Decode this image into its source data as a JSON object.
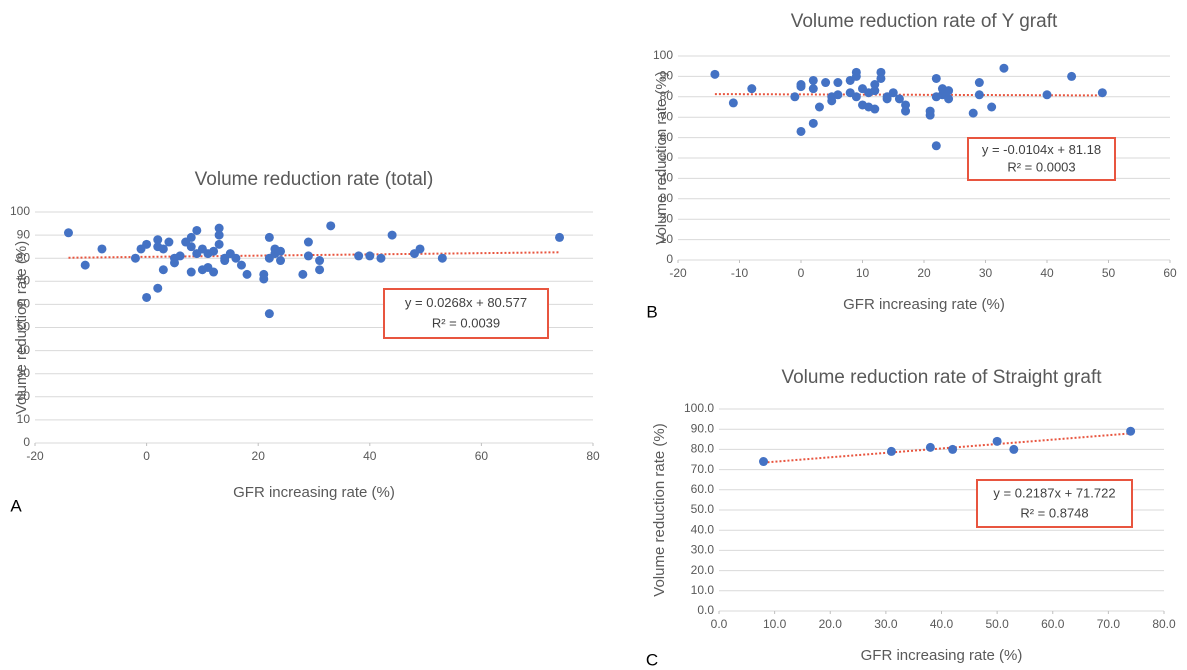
{
  "chart_data": [
    {
      "type": "scatter",
      "panel_label": "A",
      "title": "Volume reduction rate (total)",
      "x_label": "GFR increasing rate (%)",
      "y_label": "Volume reduction rate (%)",
      "color": "#4472c4",
      "grid": true,
      "x": [
        -14,
        -11,
        -8,
        -2,
        -1,
        0,
        0,
        2,
        2,
        2,
        3,
        3,
        4,
        5,
        5,
        6,
        7,
        8,
        8,
        8,
        9,
        9,
        10,
        10,
        11,
        11,
        12,
        12,
        13,
        13,
        13,
        14,
        14,
        15,
        16,
        17,
        18,
        21,
        21,
        22,
        22,
        22,
        23,
        23,
        24,
        24,
        28,
        29,
        29,
        31,
        31,
        33,
        38,
        40,
        42,
        44,
        48,
        49,
        53,
        74
      ],
      "values": [
        91,
        77,
        84,
        80,
        84,
        86,
        63,
        67,
        88,
        85,
        84,
        75,
        87,
        78,
        80,
        81,
        87,
        74,
        85,
        89,
        82,
        92,
        84,
        75,
        76,
        82,
        74,
        83,
        86,
        90,
        93,
        80,
        79,
        82,
        80,
        77,
        73,
        71,
        73,
        89,
        80,
        56,
        84,
        82,
        79,
        83,
        73,
        87,
        81,
        75,
        79,
        94,
        81,
        81,
        80,
        90,
        82,
        84,
        80,
        89
      ],
      "xlim": [
        -20,
        80
      ],
      "xticks": [
        -20,
        0,
        20,
        40,
        60,
        80
      ],
      "ylim": [
        0,
        100
      ],
      "yticks": [
        0,
        10,
        20,
        30,
        40,
        50,
        60,
        70,
        80,
        90,
        100
      ],
      "trendline": {
        "color": "#e8553f",
        "slope": 0.0268,
        "intercept": 80.577,
        "equation": "y = 0.0268x + 80.577",
        "r2_label": "R² = 0.0039",
        "r2": 0.0039
      }
    },
    {
      "type": "scatter",
      "panel_label": "B",
      "title": "Volume reduction rate of Y graft",
      "x_label": "GFR increasing rate (%)",
      "y_label": "Volume reduction rate (%)",
      "color": "#4472c4",
      "grid": true,
      "x": [
        -14,
        -11,
        -8,
        -1,
        0,
        0,
        0,
        2,
        2,
        2,
        3,
        4,
        5,
        5,
        6,
        6,
        8,
        8,
        9,
        9,
        9,
        10,
        10,
        11,
        11,
        12,
        12,
        12,
        13,
        13,
        14,
        14,
        15,
        16,
        17,
        17,
        21,
        21,
        22,
        22,
        22,
        23,
        23,
        24,
        24,
        28,
        29,
        29,
        31,
        33,
        40,
        44,
        49
      ],
      "values": [
        91,
        77,
        84,
        80,
        85,
        86,
        63,
        67,
        88,
        84,
        75,
        87,
        78,
        80,
        81,
        87,
        82,
        88,
        90,
        92,
        80,
        84,
        76,
        75,
        82,
        74,
        83,
        86,
        89,
        92,
        80,
        79,
        82,
        79,
        73,
        76,
        71,
        73,
        89,
        80,
        56,
        81,
        84,
        79,
        83,
        72,
        87,
        81,
        75,
        94,
        81,
        90,
        82
      ],
      "xlim": [
        -20,
        60
      ],
      "xticks": [
        -20,
        -10,
        0,
        10,
        20,
        30,
        40,
        50,
        60
      ],
      "ylim": [
        0,
        100
      ],
      "yticks": [
        0,
        10,
        20,
        30,
        40,
        50,
        60,
        70,
        80,
        90,
        100
      ],
      "trendline": {
        "color": "#e8553f",
        "slope": -0.0104,
        "intercept": 81.18,
        "equation": "y = -0.0104x + 81.18",
        "r2_label": "R² = 0.0003",
        "r2": 0.0003
      }
    },
    {
      "type": "scatter",
      "panel_label": "C",
      "title": "Volume reduction rate of Straight graft",
      "x_label": "GFR increasing rate (%)",
      "y_label": "Volume reduction rate (%)",
      "color": "#4472c4",
      "grid": true,
      "x": [
        8,
        31,
        38,
        42,
        50,
        53,
        74
      ],
      "values": [
        74,
        79,
        81,
        80,
        84,
        80,
        89
      ],
      "xlim": [
        0,
        80
      ],
      "xticks": [
        {
          "value": 0,
          "label": "0.0"
        },
        {
          "value": 10,
          "label": "10.0"
        },
        {
          "value": 20,
          "label": "20.0"
        },
        {
          "value": 30,
          "label": "30.0"
        },
        {
          "value": 40,
          "label": "40.0"
        },
        {
          "value": 50,
          "label": "50.0"
        },
        {
          "value": 60,
          "label": "60.0"
        },
        {
          "value": 70,
          "label": "70.0"
        },
        {
          "value": 80,
          "label": "80.0"
        }
      ],
      "ylim": [
        0,
        100
      ],
      "yticks": [
        {
          "value": 0,
          "label": "0.0"
        },
        {
          "value": 10,
          "label": "10.0"
        },
        {
          "value": 20,
          "label": "20.0"
        },
        {
          "value": 30,
          "label": "30.0"
        },
        {
          "value": 40,
          "label": "40.0"
        },
        {
          "value": 50,
          "label": "50.0"
        },
        {
          "value": 60,
          "label": "60.0"
        },
        {
          "value": 70,
          "label": "70.0"
        },
        {
          "value": 80,
          "label": "80.0"
        },
        {
          "value": 90,
          "label": "90.0"
        },
        {
          "value": 100,
          "label": "100.0"
        }
      ],
      "trendline": {
        "color": "#e8553f",
        "slope": 0.2187,
        "intercept": 71.722,
        "equation": "y = 0.2187x + 71.722",
        "r2_label": "R² = 0.8748",
        "r2": 0.8748
      }
    }
  ]
}
